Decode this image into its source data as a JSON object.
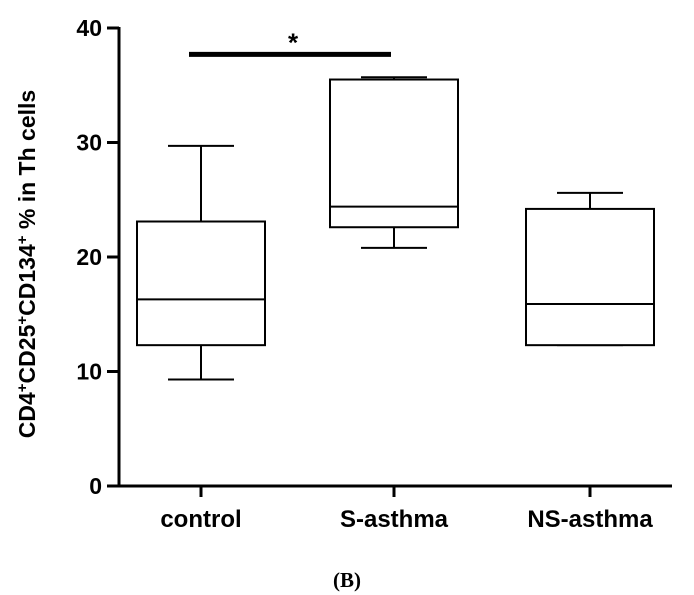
{
  "chart_data": {
    "type": "boxplot",
    "ylabel": {
      "parts": [
        {
          "text": "CD4",
          "sup": false
        },
        {
          "text": "+",
          "sup": true
        },
        {
          "text": "CD25",
          "sup": false
        },
        {
          "text": "+",
          "sup": true
        },
        {
          "text": "CD134",
          "sup": false
        },
        {
          "text": "+",
          "sup": true
        },
        {
          "text": " % in Th cells",
          "sup": false
        }
      ]
    },
    "ylim": [
      0,
      40
    ],
    "yticks": [
      0,
      10,
      20,
      30,
      40
    ],
    "categories": [
      "control",
      "S-asthma",
      "NS-asthma"
    ],
    "boxes": [
      {
        "name": "control",
        "min": 9.3,
        "q1": 12.3,
        "median": 16.3,
        "q3": 23.1,
        "max": 29.7
      },
      {
        "name": "S-asthma",
        "min": 20.8,
        "q1": 22.6,
        "median": 24.4,
        "q3": 35.5,
        "max": 35.7
      },
      {
        "name": "NS-asthma",
        "min": 12.3,
        "q1": 12.3,
        "median": 15.9,
        "q3": 24.2,
        "max": 25.6
      }
    ],
    "significance": {
      "from": "control",
      "to": "S-asthma",
      "y": 37.7,
      "label": "*"
    },
    "panel_label": "(B)"
  }
}
